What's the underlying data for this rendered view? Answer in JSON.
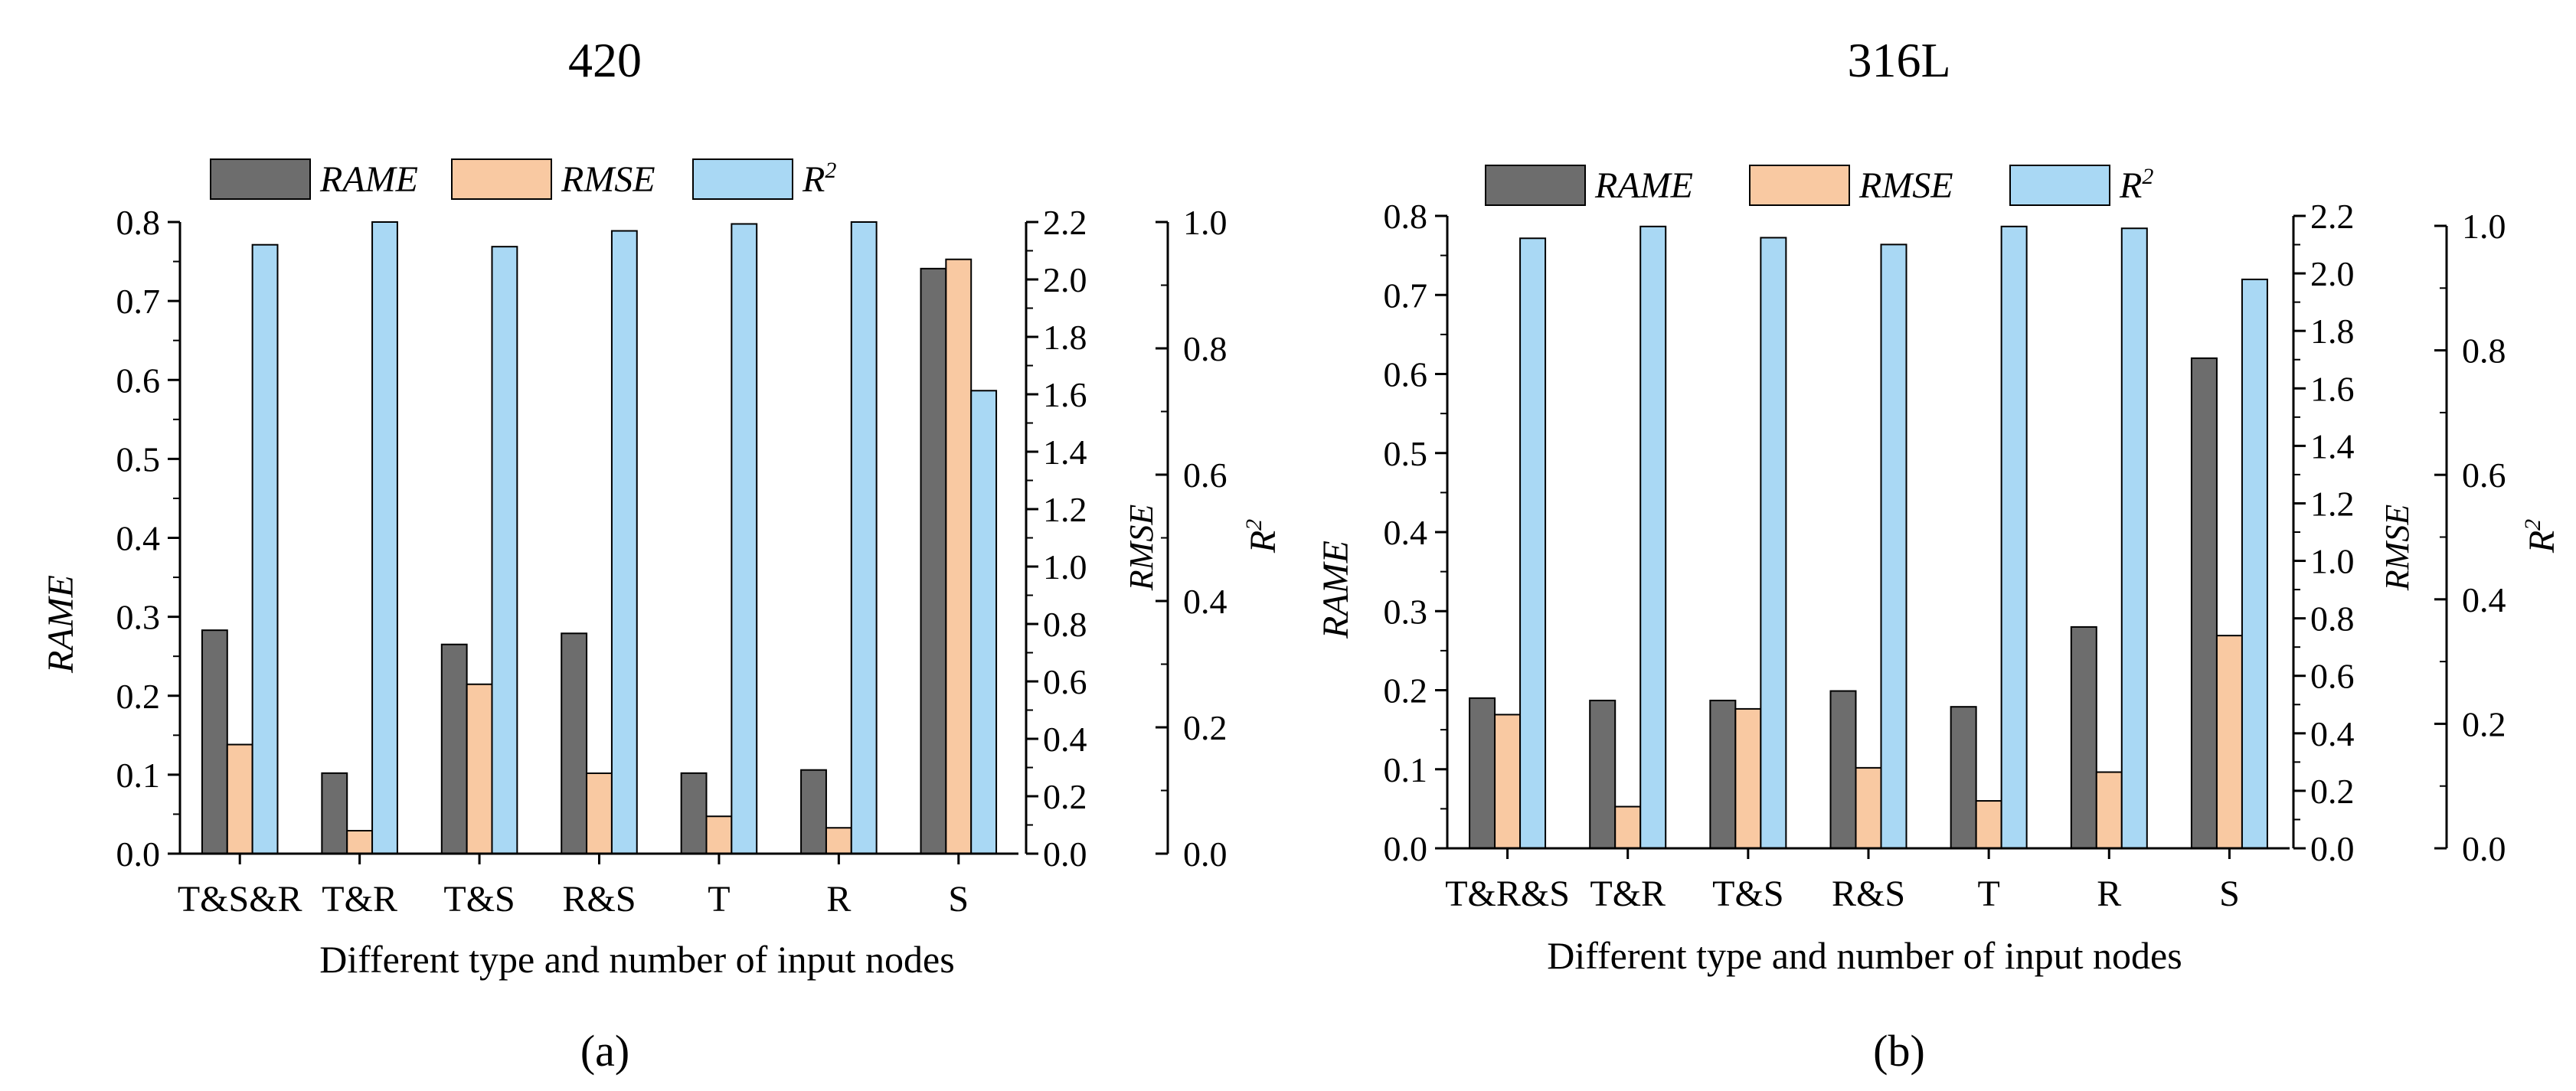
{
  "colors": {
    "rame": "#6d6d6d",
    "rmse": "#f9c9a2",
    "r2": "#a9d8f4",
    "axis": "#000000"
  },
  "panels": [
    {
      "title": "420",
      "caption": "(a)",
      "xlabel": "Different type and number of input nodes",
      "legend": {
        "rame": "RAME",
        "rmse": "RMSE",
        "r2_base": "R",
        "r2_sup": "2"
      },
      "axis_labels": {
        "rame": "RAME",
        "rmse": "RMSE",
        "r2_base": "R",
        "r2_sup": "2"
      },
      "rame_ticks": [
        "0.0",
        "0.1",
        "0.2",
        "0.3",
        "0.4",
        "0.5",
        "0.6",
        "0.7",
        "0.8"
      ],
      "rmse_ticks": [
        "0.0",
        "0.2",
        "0.4",
        "0.6",
        "0.8",
        "1.0",
        "1.2",
        "1.4",
        "1.6",
        "1.8",
        "2.0",
        "2.2"
      ],
      "r2_ticks": [
        "0.0",
        "0.2",
        "0.4",
        "0.6",
        "0.8",
        "1.0"
      ]
    },
    {
      "title": "316L",
      "caption": "(b)",
      "xlabel": "Different type and number of input nodes",
      "legend": {
        "rame": "RAME",
        "rmse": "RMSE",
        "r2_base": "R",
        "r2_sup": "2"
      },
      "axis_labels": {
        "rame": "RAME",
        "rmse": "RMSE",
        "r2_base": "R",
        "r2_sup": "2"
      },
      "rame_ticks": [
        "0.0",
        "0.1",
        "0.2",
        "0.3",
        "0.4",
        "0.5",
        "0.6",
        "0.7",
        "0.8"
      ],
      "rmse_ticks": [
        "0.0",
        "0.2",
        "0.4",
        "0.6",
        "0.8",
        "1.0",
        "1.2",
        "1.4",
        "1.6",
        "1.8",
        "2.0",
        "2.2"
      ],
      "r2_ticks": [
        "0.0",
        "0.2",
        "0.4",
        "0.6",
        "0.8",
        "1.0"
      ]
    }
  ],
  "chart_data": [
    {
      "type": "bar",
      "title": "420",
      "xlabel": "Different type and number of input nodes",
      "categories": [
        "T&S&R",
        "T&R",
        "T&S",
        "R&S",
        "T",
        "R",
        "S"
      ],
      "series": [
        {
          "name": "RAME",
          "axis": "RAME",
          "values": [
            0.283,
            0.102,
            0.265,
            0.279,
            0.102,
            0.106,
            0.741
          ]
        },
        {
          "name": "RMSE",
          "axis": "RMSE",
          "values": [
            0.38,
            0.08,
            0.59,
            0.28,
            0.13,
            0.09,
            2.07
          ]
        },
        {
          "name": "R2",
          "axis": "R2",
          "values": [
            0.964,
            1.0,
            0.961,
            0.986,
            0.997,
            1.0,
            0.733
          ]
        }
      ],
      "axes": {
        "RAME": [
          0,
          0.8
        ],
        "RMSE": [
          0,
          2.2
        ],
        "R2": [
          0,
          1.0
        ]
      }
    },
    {
      "type": "bar",
      "title": "316L",
      "xlabel": "Different type and number of input nodes",
      "categories": [
        "T&R&S",
        "T&R",
        "T&S",
        "R&S",
        "T",
        "R",
        "S"
      ],
      "series": [
        {
          "name": "RAME",
          "axis": "RAME",
          "values": [
            0.19,
            0.187,
            0.187,
            0.199,
            0.179,
            0.28,
            0.62
          ]
        },
        {
          "name": "RMSE",
          "axis": "RMSE",
          "values": [
            0.465,
            0.145,
            0.485,
            0.28,
            0.165,
            0.265,
            0.74
          ]
        },
        {
          "name": "R2",
          "axis": "R2",
          "values": [
            0.98,
            0.999,
            0.981,
            0.97,
            0.999,
            0.996,
            0.914
          ]
        }
      ],
      "axes": {
        "RAME": [
          0,
          0.8
        ],
        "RMSE": [
          0,
          2.2
        ],
        "R2": [
          0,
          1.0
        ]
      }
    }
  ]
}
